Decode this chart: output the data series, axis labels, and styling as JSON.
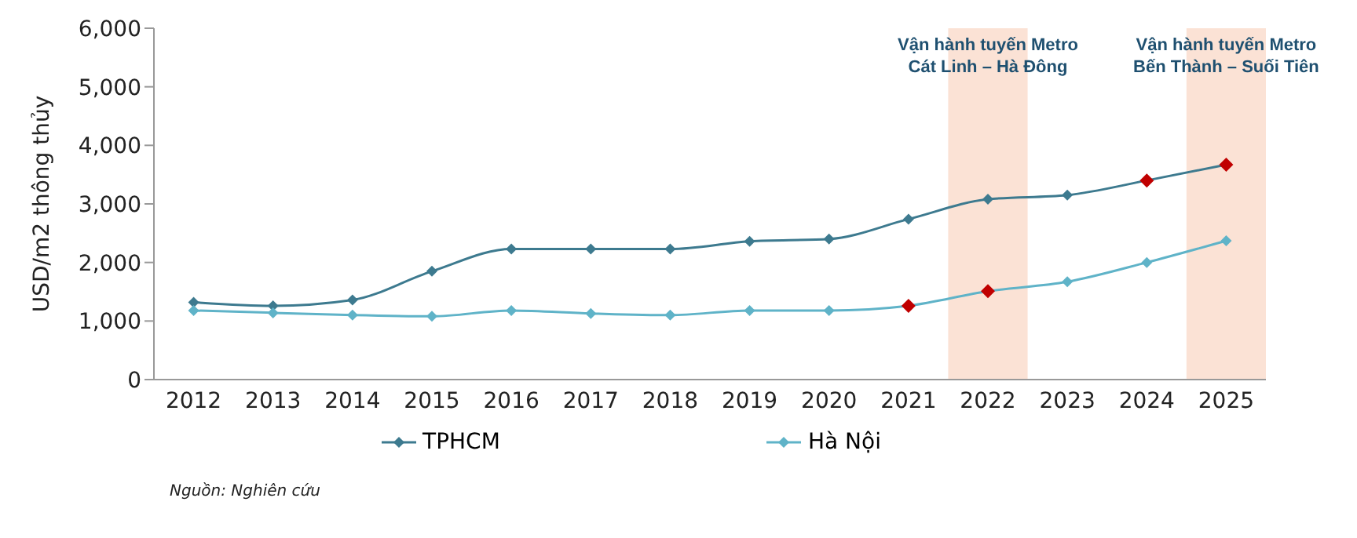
{
  "chart_data": {
    "type": "line",
    "ylabel": "USD/m2 thông thủy",
    "categories": [
      "2012",
      "2013",
      "2014",
      "2015",
      "2016",
      "2017",
      "2018",
      "2019",
      "2020",
      "2021",
      "2022",
      "2023",
      "2024",
      "2025"
    ],
    "series": [
      {
        "name": "TPHCM",
        "color": "#3d7a8f",
        "values": [
          1320,
          1260,
          1360,
          1850,
          2230,
          2230,
          2230,
          2360,
          2400,
          2740,
          3080,
          3150,
          3400,
          3670
        ],
        "colors": [
          "#3d7a8f",
          "#3d7a8f",
          "#3d7a8f",
          "#3d7a8f",
          "#3d7a8f",
          "#3d7a8f",
          "#3d7a8f",
          "#3d7a8f",
          "#3d7a8f",
          "#3d7a8f",
          "#3d7a8f",
          "#3d7a8f",
          "#c00000",
          "#c00000"
        ]
      },
      {
        "name": "Hà Nội",
        "color": "#5fb3c8",
        "values": [
          1180,
          1140,
          1100,
          1080,
          1180,
          1130,
          1100,
          1180,
          1180,
          1260,
          1510,
          1670,
          2000,
          2370
        ],
        "colors": [
          "#5fb3c8",
          "#5fb3c8",
          "#5fb3c8",
          "#5fb3c8",
          "#5fb3c8",
          "#5fb3c8",
          "#5fb3c8",
          "#5fb3c8",
          "#5fb3c8",
          "#c00000",
          "#c00000",
          "#5fb3c8",
          "#5fb3c8",
          "#5fb3c8"
        ]
      }
    ],
    "ylim": [
      0,
      6000
    ],
    "yticks": [
      {
        "value": 0,
        "label": "0"
      },
      {
        "value": 1000,
        "label": "1,000"
      },
      {
        "value": 2000,
        "label": "2,000"
      },
      {
        "value": 3000,
        "label": "3,000"
      },
      {
        "value": 4000,
        "label": "4,000"
      },
      {
        "value": 5000,
        "label": "5,000"
      },
      {
        "value": 6000,
        "label": "6,000"
      }
    ],
    "bands": [
      {
        "axis": "x",
        "from": "2022",
        "to": "2022",
        "label": "Vận hành tuyến Metro\nCát Linh – Hà Đông",
        "color": "#fbe2d5"
      },
      {
        "axis": "x",
        "from": "2025",
        "to": "2025",
        "label": "Vận hành tuyến Metro\nBến Thành – Suối Tiên",
        "color": "#fbe2d5"
      }
    ],
    "annotations": [
      "Nguồn: Nghiên cứu"
    ],
    "grid": false,
    "legend": "bottom",
    "marker": "diamond",
    "line_style": "solid"
  }
}
